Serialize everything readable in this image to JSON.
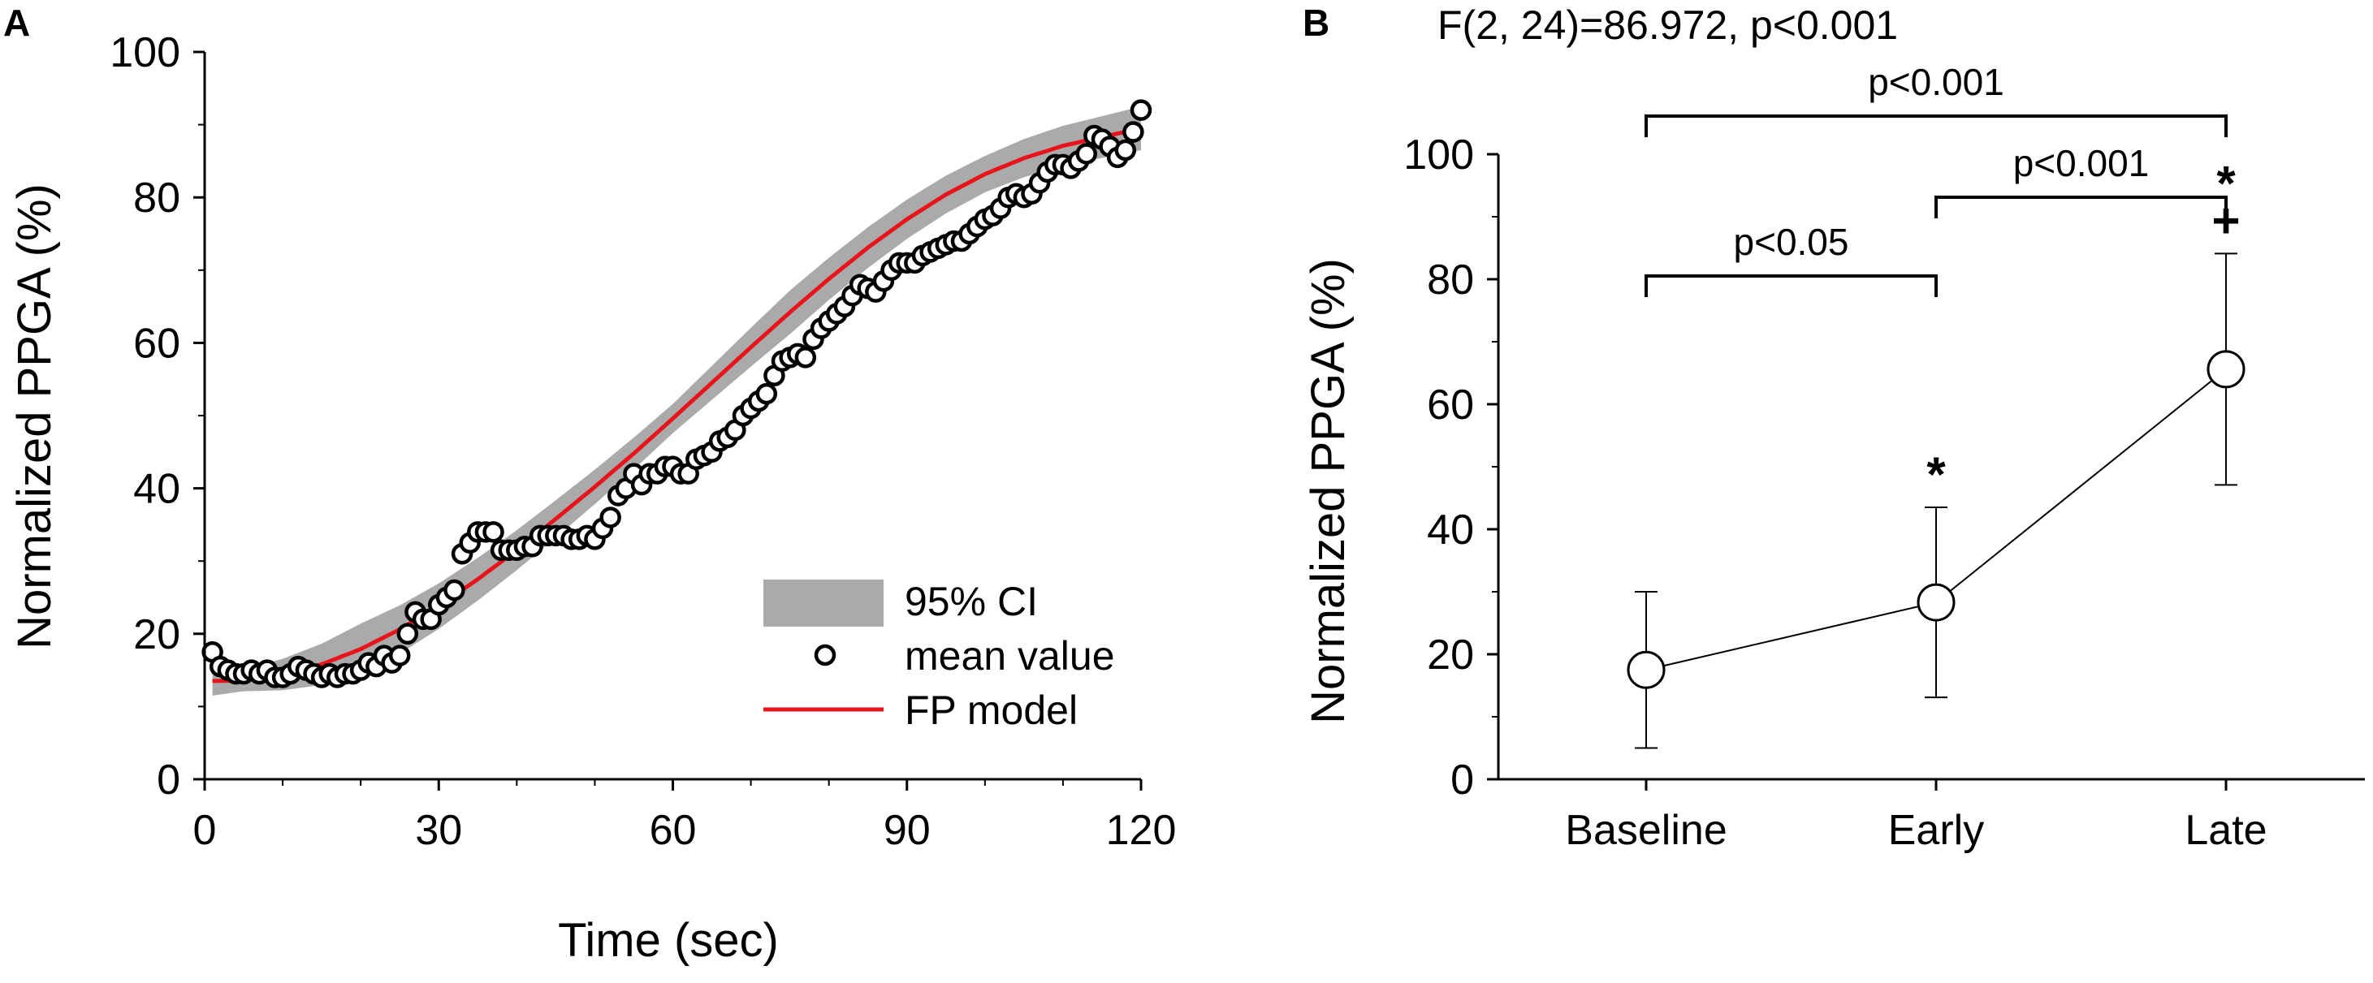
{
  "colors": {
    "ci_band": "#aaaaaa",
    "fit_line": "#e8141b",
    "axis": "#000000",
    "marker_fill": "#ffffff"
  },
  "chart_data": [
    {
      "panel": "A",
      "type": "scatter",
      "xlabel": "Time (sec)",
      "ylabel": "Normalized PPGA (%)",
      "xlim": [
        0,
        120
      ],
      "ylim": [
        0,
        100
      ],
      "xticks": [
        "0",
        "30",
        "60",
        "90",
        "120"
      ],
      "yticks": [
        "0",
        "20",
        "40",
        "60",
        "80",
        "100"
      ],
      "legend": {
        "position": "bottom-right",
        "items": [
          {
            "label": "95% CI",
            "kind": "band"
          },
          {
            "label": "mean value",
            "kind": "marker"
          },
          {
            "label": "FP model",
            "kind": "line"
          }
        ]
      },
      "series": [
        {
          "name": "mean value",
          "points": [
            [
              1,
              17.5
            ],
            [
              2,
              15.5
            ],
            [
              3,
              15
            ],
            [
              4,
              14.5
            ],
            [
              5,
              14.5
            ],
            [
              6,
              15
            ],
            [
              7,
              14.5
            ],
            [
              8,
              15
            ],
            [
              9,
              14
            ],
            [
              10,
              14
            ],
            [
              11,
              14.5
            ],
            [
              12,
              15.5
            ],
            [
              13,
              15
            ],
            [
              14,
              14.5
            ],
            [
              15,
              14
            ],
            [
              16,
              14.5
            ],
            [
              17,
              14
            ],
            [
              18,
              14.5
            ],
            [
              19,
              14.5
            ],
            [
              20,
              15
            ],
            [
              21,
              16
            ],
            [
              22,
              15.5
            ],
            [
              23,
              17
            ],
            [
              24,
              16
            ],
            [
              25,
              17
            ],
            [
              26,
              20
            ],
            [
              27,
              23
            ],
            [
              28,
              22
            ],
            [
              29,
              22
            ],
            [
              30,
              24
            ],
            [
              31,
              25
            ],
            [
              32,
              26
            ],
            [
              33,
              31
            ],
            [
              34,
              32.5
            ],
            [
              35,
              34
            ],
            [
              36,
              34
            ],
            [
              37,
              34
            ],
            [
              38,
              31.5
            ],
            [
              39,
              31.5
            ],
            [
              40,
              31.5
            ],
            [
              41,
              32
            ],
            [
              42,
              32
            ],
            [
              43,
              33.5
            ],
            [
              44,
              33.5
            ],
            [
              45,
              33.5
            ],
            [
              46,
              33.5
            ],
            [
              47,
              33
            ],
            [
              48,
              33
            ],
            [
              49,
              33.5
            ],
            [
              50,
              33
            ],
            [
              51,
              34.5
            ],
            [
              52,
              36
            ],
            [
              53,
              39
            ],
            [
              54,
              40
            ],
            [
              55,
              42
            ],
            [
              56,
              40.5
            ],
            [
              57,
              42
            ],
            [
              58,
              42
            ],
            [
              59,
              43
            ],
            [
              60,
              43
            ],
            [
              61,
              42
            ],
            [
              62,
              42
            ],
            [
              63,
              44
            ],
            [
              64,
              44.5
            ],
            [
              65,
              45
            ],
            [
              66,
              46.5
            ],
            [
              67,
              47
            ],
            [
              68,
              48
            ],
            [
              69,
              50
            ],
            [
              70,
              51
            ],
            [
              71,
              52
            ],
            [
              72,
              53
            ],
            [
              73,
              55.5
            ],
            [
              74,
              57.5
            ],
            [
              75,
              58
            ],
            [
              76,
              58.5
            ],
            [
              77,
              58
            ],
            [
              78,
              60.5
            ],
            [
              79,
              62
            ],
            [
              80,
              63
            ],
            [
              81,
              64
            ],
            [
              82,
              65
            ],
            [
              83,
              66.5
            ],
            [
              84,
              68
            ],
            [
              85,
              67.5
            ],
            [
              86,
              67
            ],
            [
              87,
              68.5
            ],
            [
              88,
              70
            ],
            [
              89,
              71
            ],
            [
              90,
              71
            ],
            [
              91,
              71
            ],
            [
              92,
              72
            ],
            [
              93,
              72.5
            ],
            [
              94,
              73
            ],
            [
              95,
              73.5
            ],
            [
              96,
              74
            ],
            [
              97,
              74
            ],
            [
              98,
              75
            ],
            [
              99,
              76
            ],
            [
              100,
              77
            ],
            [
              101,
              77.5
            ],
            [
              102,
              78.5
            ],
            [
              103,
              80
            ],
            [
              104,
              80.5
            ],
            [
              105,
              80
            ],
            [
              106,
              80.5
            ],
            [
              107,
              82
            ],
            [
              108,
              83.5
            ],
            [
              109,
              84.5
            ],
            [
              110,
              84.5
            ],
            [
              111,
              84
            ],
            [
              112,
              85
            ],
            [
              113,
              86
            ],
            [
              114,
              88.5
            ],
            [
              115,
              88
            ],
            [
              116,
              87
            ],
            [
              117,
              85.5
            ],
            [
              118,
              86.5
            ],
            [
              119,
              89
            ],
            [
              120,
              92
            ]
          ]
        },
        {
          "name": "FP model",
          "points": [
            [
              1,
              13.5
            ],
            [
              5,
              13.6
            ],
            [
              10,
              14.4
            ],
            [
              15,
              15.8
            ],
            [
              20,
              17.9
            ],
            [
              25,
              20.6
            ],
            [
              30,
              23.8
            ],
            [
              35,
              27.5
            ],
            [
              40,
              31.5
            ],
            [
              45,
              35.8
            ],
            [
              50,
              40.2
            ],
            [
              55,
              44.8
            ],
            [
              60,
              49.6
            ],
            [
              65,
              54.5
            ],
            [
              70,
              59.4
            ],
            [
              75,
              64.2
            ],
            [
              80,
              68.8
            ],
            [
              85,
              73.1
            ],
            [
              90,
              77
            ],
            [
              95,
              80.4
            ],
            [
              100,
              83.2
            ],
            [
              105,
              85.4
            ],
            [
              110,
              87.1
            ],
            [
              115,
              88.3
            ],
            [
              120,
              89.5
            ]
          ]
        },
        {
          "name": "95% CI",
          "halfwidth": [
            [
              1,
              2
            ],
            [
              5,
              1.5
            ],
            [
              20,
              3.5
            ],
            [
              60,
              2
            ],
            [
              75,
              3
            ],
            [
              100,
              2.5
            ],
            [
              120,
              3
            ]
          ]
        }
      ]
    },
    {
      "panel": "B",
      "type": "line",
      "title": "F(2, 24)=86.972, p<0.001",
      "ylabel": "Normalized PPGA (%)",
      "ylim": [
        0,
        100
      ],
      "yticks": [
        "0",
        "20",
        "40",
        "60",
        "80",
        "100"
      ],
      "categories": [
        "Baseline",
        "Early",
        "Late"
      ],
      "values": [
        17.5,
        28.3,
        65.6
      ],
      "error": [
        12.5,
        15.2,
        18.5
      ],
      "point_marks": [
        "",
        "*",
        "*\n+"
      ],
      "comparisons": [
        {
          "from": "Baseline",
          "to": "Early",
          "label": "p<0.05"
        },
        {
          "from": "Early",
          "to": "Late",
          "label": "p<0.001"
        },
        {
          "from": "Baseline",
          "to": "Late",
          "label": "p<0.001"
        }
      ]
    }
  ]
}
